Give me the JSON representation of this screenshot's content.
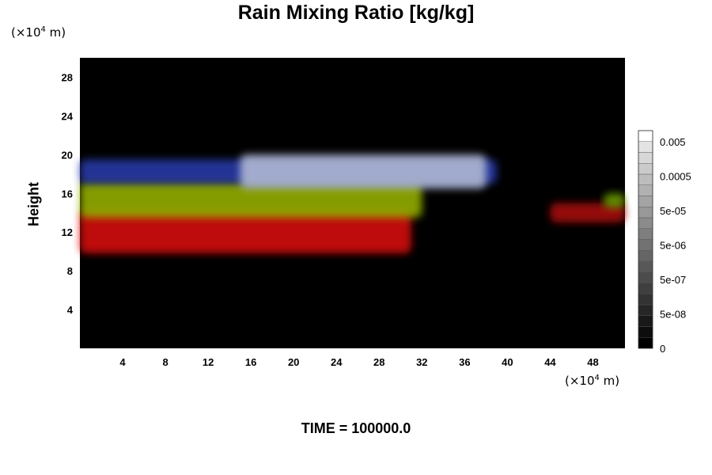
{
  "chart_data": {
    "type": "heatmap",
    "title": "Rain Mixing Ratio [kg/kg]",
    "ylabel": "Height",
    "x_unit": {
      "prefix": "(×10",
      "exp": "4",
      "suffix": " m)"
    },
    "y_unit": {
      "prefix": "(×10",
      "exp": "4",
      "suffix": " m)"
    },
    "xlim": [
      0,
      51
    ],
    "ylim": [
      0,
      30
    ],
    "x_ticks": [
      4,
      8,
      12,
      16,
      20,
      24,
      28,
      32,
      36,
      40,
      44,
      48
    ],
    "y_ticks": [
      4,
      8,
      12,
      16,
      20,
      24,
      28
    ],
    "background_color": "#000000",
    "colorbar": {
      "labels": [
        "0.005",
        "0.0005",
        "5e-05",
        "5e-06",
        "5e-07",
        "5e-08",
        "0"
      ],
      "levels": 20,
      "color_low": "#000000",
      "color_high": "#ffffff"
    },
    "regions": [
      {
        "name": "rain-band-low",
        "color": "#e01010",
        "x": [
          0,
          31
        ],
        "y": [
          9.8,
          14.2
        ]
      },
      {
        "name": "rain-band-mid",
        "color": "#9cb800",
        "x": [
          0,
          32
        ],
        "y": [
          13.5,
          17.2
        ]
      },
      {
        "name": "rain-band-high",
        "color": "#2a3cb0",
        "x": [
          0,
          39
        ],
        "y": [
          17,
          19.5
        ]
      },
      {
        "name": "rain-band-top",
        "color": "#b8c0d8",
        "x": [
          15,
          38
        ],
        "y": [
          16.5,
          20
        ]
      },
      {
        "name": "rain-patch-right",
        "color": "#b01010",
        "x": [
          44,
          51
        ],
        "y": [
          13,
          15
        ]
      },
      {
        "name": "rain-patch-right-green",
        "color": "#6aa000",
        "x": [
          49,
          51
        ],
        "y": [
          14.5,
          16
        ]
      }
    ]
  },
  "footer": {
    "time": "TIME = 100000.0"
  }
}
